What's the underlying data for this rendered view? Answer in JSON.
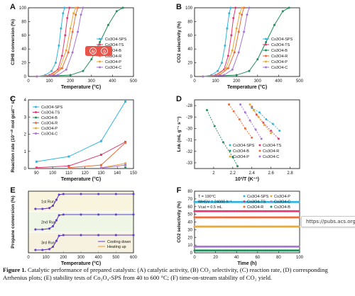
{
  "figure_caption": {
    "label": "Figure 1.",
    "text": "Catalytic performance of prepared catalysts: (A) catalytic activity, (B) CO₂ selectivity, (C) reaction rate, (D) corresponding Arrhenius plots; (E) stability tests of Co₃O₄-SPS from 40 to 600 °C; (F) time-on-stream stability of CO₂ yield."
  },
  "tooltip_url": "https://pubs.acs.org/do",
  "colors": {
    "Co3O4-SPS": "#2fb5e0",
    "Co3O4-TS": "#e23a6f",
    "Co3O4-B": "#1f8e5a",
    "Co3O4-R": "#ef6a36",
    "Co3O4-P": "#e6a93a",
    "Co3O4-C": "#a874d4",
    "cooling": "#5b3fd1",
    "heating": "#f2902d"
  },
  "chart_data": [
    {
      "panel": "A",
      "type": "line",
      "ylabel": "C3H8 conversion (%)",
      "xlabel": "Temperature (°C)",
      "xlim": [
        0,
        500
      ],
      "ylim": [
        0,
        100
      ],
      "xticks": [
        0,
        100,
        200,
        300,
        400,
        500
      ],
      "yticks": [
        0,
        20,
        40,
        60,
        80,
        100
      ],
      "icons": [
        "Al",
        "Q"
      ],
      "series": [
        {
          "name": "Co3O4-SPS",
          "x": [
            40,
            80,
            110,
            130,
            145,
            155,
            165,
            172
          ],
          "y": [
            0,
            2,
            8,
            20,
            45,
            70,
            92,
            100
          ]
        },
        {
          "name": "Co3O4-TS",
          "x": [
            40,
            100,
            140,
            160,
            175,
            185,
            195
          ],
          "y": [
            0,
            2,
            10,
            30,
            60,
            85,
            100
          ]
        },
        {
          "name": "Co3O4-B",
          "x": [
            40,
            200,
            260,
            300,
            340,
            380,
            420,
            450
          ],
          "y": [
            0,
            2,
            8,
            25,
            50,
            75,
            95,
            100
          ]
        },
        {
          "name": "Co3O4-R",
          "x": [
            40,
            120,
            160,
            190,
            210,
            225,
            235
          ],
          "y": [
            0,
            2,
            12,
            35,
            65,
            90,
            100
          ]
        },
        {
          "name": "Co3O4-P",
          "x": [
            40,
            110,
            150,
            180,
            200,
            215,
            225
          ],
          "y": [
            0,
            2,
            12,
            38,
            70,
            92,
            100
          ]
        },
        {
          "name": "Co3O4-C",
          "x": [
            40,
            140,
            180,
            210,
            235,
            250,
            260
          ],
          "y": [
            0,
            2,
            10,
            35,
            65,
            90,
            100
          ]
        }
      ]
    },
    {
      "panel": "B",
      "type": "line",
      "ylabel": "CO2 selectivity (%)",
      "xlabel": "Temperature (°C)",
      "xlim": [
        0,
        500
      ],
      "ylim": [
        0,
        100
      ],
      "xticks": [
        0,
        100,
        200,
        300,
        400,
        500
      ],
      "yticks": [
        0,
        20,
        40,
        60,
        80,
        100
      ],
      "series": [
        {
          "name": "Co3O4-SPS",
          "x": [
            40,
            80,
            110,
            130,
            145,
            155,
            165,
            172
          ],
          "y": [
            0,
            2,
            8,
            20,
            45,
            70,
            92,
            100
          ]
        },
        {
          "name": "Co3O4-TS",
          "x": [
            40,
            100,
            140,
            160,
            175,
            185,
            195
          ],
          "y": [
            0,
            2,
            10,
            30,
            60,
            85,
            100
          ]
        },
        {
          "name": "Co3O4-B",
          "x": [
            40,
            200,
            260,
            300,
            340,
            380,
            420,
            450
          ],
          "y": [
            0,
            2,
            8,
            25,
            50,
            75,
            95,
            100
          ]
        },
        {
          "name": "Co3O4-R",
          "x": [
            40,
            120,
            160,
            190,
            210,
            225,
            235
          ],
          "y": [
            0,
            2,
            12,
            35,
            65,
            90,
            100
          ]
        },
        {
          "name": "Co3O4-P",
          "x": [
            40,
            110,
            150,
            180,
            200,
            215,
            225
          ],
          "y": [
            0,
            2,
            12,
            38,
            70,
            92,
            100
          ]
        },
        {
          "name": "Co3O4-C",
          "x": [
            40,
            140,
            180,
            210,
            235,
            250,
            260
          ],
          "y": [
            0,
            2,
            10,
            35,
            65,
            90,
            100
          ]
        }
      ]
    },
    {
      "panel": "C",
      "type": "line",
      "ylabel": "Reaction rate (10⁻¹⁰ mol gcat⁻¹ s⁻¹)",
      "xlabel": "Temperature (°C)",
      "xlim": [
        85,
        150
      ],
      "ylim": [
        0,
        4
      ],
      "xticks": [
        90,
        100,
        110,
        120,
        130,
        140,
        150
      ],
      "yticks": [
        0,
        1,
        2,
        3,
        4
      ],
      "series": [
        {
          "name": "Co3O4-SPS",
          "x": [
            90,
            110,
            130,
            145
          ],
          "y": [
            0.4,
            0.7,
            1.6,
            3.9
          ]
        },
        {
          "name": "Co3O4-TS",
          "x": [
            90,
            110,
            130,
            145
          ],
          "y": [
            0.05,
            0.15,
            0.8,
            1.55
          ]
        },
        {
          "name": "Co3O4-B",
          "x": [
            145
          ],
          "y": [
            0.05
          ]
        },
        {
          "name": "Co3O4-R",
          "x": [
            110,
            130,
            145
          ],
          "y": [
            0.05,
            0.2,
            1.5
          ]
        },
        {
          "name": "Co3O4-P",
          "x": [
            130,
            145
          ],
          "y": [
            0.05,
            0.3
          ]
        },
        {
          "name": "Co3O4-C",
          "x": [
            130,
            145
          ],
          "y": [
            0.03,
            0.2
          ]
        }
      ]
    },
    {
      "panel": "D",
      "type": "scatter",
      "ylabel": "Lnk (mL g⁻¹ s⁻¹)",
      "xlabel": "10³/T (K⁻¹)",
      "xlim": [
        1.8,
        2.9
      ],
      "ylim": [
        -33.5,
        -27.5
      ],
      "xticks": [
        2.0,
        2.2,
        2.4,
        2.6,
        2.8
      ],
      "yticks": [
        -28,
        -29,
        -30,
        -31,
        -32,
        -33
      ],
      "series": [
        {
          "name": "Co3O4-SPS",
          "x": [
            2.4,
            2.48,
            2.55,
            2.62,
            2.69
          ],
          "y": [
            -28.2,
            -28.6,
            -29.2,
            -29.6,
            -30.2
          ]
        },
        {
          "name": "Co3O4-TS",
          "x": [
            2.4,
            2.45,
            2.52,
            2.6,
            2.68
          ],
          "y": [
            -28.1,
            -28.8,
            -29.5,
            -30.2,
            -30.9
          ]
        },
        {
          "name": "Co3O4-B",
          "x": [
            1.93,
            2.01,
            2.1,
            2.2,
            2.25
          ],
          "y": [
            -28.4,
            -29.8,
            -31.2,
            -32.5,
            -33.3
          ]
        },
        {
          "name": "Co3O4-R",
          "x": [
            2.16,
            2.21,
            2.27,
            2.33,
            2.4
          ],
          "y": [
            -27.9,
            -28.5,
            -29.2,
            -30.0,
            -30.8
          ]
        },
        {
          "name": "Co3O4-P",
          "x": [
            2.38,
            2.42,
            2.47,
            2.53,
            2.6
          ],
          "y": [
            -27.9,
            -28.4,
            -29.0,
            -29.7,
            -30.4
          ]
        },
        {
          "name": "Co3O4-C",
          "x": [
            2.28,
            2.33,
            2.38,
            2.44,
            2.5
          ],
          "y": [
            -27.9,
            -28.6,
            -29.3,
            -30.1,
            -30.9
          ]
        }
      ]
    },
    {
      "panel": "E",
      "type": "line",
      "ylabel": "Propane conversion (%)",
      "xlabel": "Temperature (°C)",
      "xlim": [
        0,
        600
      ],
      "xticks": [
        0,
        100,
        200,
        300,
        400,
        500,
        600
      ],
      "runs": [
        "1st Run",
        "2nd Run",
        "3rd Run"
      ],
      "legend": [
        "Cooling down",
        "Heating up"
      ],
      "series": [
        {
          "name": "Heating up",
          "run": 1,
          "x": [
            40,
            80,
            120,
            140,
            160,
            175,
            200,
            300,
            400,
            500,
            600
          ],
          "y": [
            0,
            0,
            5,
            20,
            60,
            95,
            100,
            100,
            100,
            100,
            100
          ]
        },
        {
          "name": "Cooling down",
          "run": 1,
          "x": [
            40,
            80,
            120,
            140,
            160,
            175,
            200,
            300,
            400,
            500,
            600
          ],
          "y": [
            0,
            0,
            6,
            22,
            62,
            96,
            100,
            100,
            100,
            100,
            100
          ]
        },
        {
          "name": "Heating up",
          "run": 2,
          "x": [
            40,
            80,
            120,
            140,
            160,
            175,
            200,
            300,
            400,
            500,
            600
          ],
          "y": [
            0,
            0,
            5,
            20,
            60,
            95,
            100,
            100,
            100,
            100,
            100
          ]
        },
        {
          "name": "Cooling down",
          "run": 2,
          "x": [
            40,
            80,
            120,
            140,
            160,
            175,
            200,
            300,
            400,
            500,
            600
          ],
          "y": [
            0,
            0,
            6,
            22,
            62,
            96,
            100,
            100,
            100,
            100,
            100
          ]
        },
        {
          "name": "Heating up",
          "run": 3,
          "x": [
            40,
            80,
            120,
            140,
            160,
            175,
            200,
            300,
            400,
            500,
            600
          ],
          "y": [
            0,
            0,
            5,
            20,
            60,
            95,
            100,
            100,
            100,
            100,
            100
          ]
        },
        {
          "name": "Cooling down",
          "run": 3,
          "x": [
            40,
            80,
            120,
            140,
            160,
            175,
            200,
            300,
            400,
            500,
            600
          ],
          "y": [
            0,
            0,
            6,
            22,
            62,
            96,
            100,
            100,
            100,
            100,
            100
          ]
        }
      ]
    },
    {
      "panel": "F",
      "type": "scatter",
      "ylabel": "CO2 selectivity (%)",
      "xlabel": "Time (h)",
      "xlim": [
        0,
        100
      ],
      "ylim": [
        0,
        80
      ],
      "xticks": [
        0,
        20,
        40,
        60,
        80,
        100
      ],
      "yticks": [
        0,
        10,
        20,
        30,
        40,
        50,
        60,
        70,
        80
      ],
      "annotations": [
        "T = 190°C",
        "WHSV = 24000 h⁻¹",
        "Vcat = 0.5 mL"
      ],
      "series": [
        {
          "name": "Co3O4-SPS",
          "y": 66
        },
        {
          "name": "Co3O4-TS",
          "y": 54
        },
        {
          "name": "Co3O4-R",
          "y": 46
        },
        {
          "name": "Co3O4-P",
          "y": 34
        },
        {
          "name": "Co3O4-C",
          "y": 8
        },
        {
          "name": "Co3O4-B",
          "y": 3
        }
      ]
    }
  ]
}
